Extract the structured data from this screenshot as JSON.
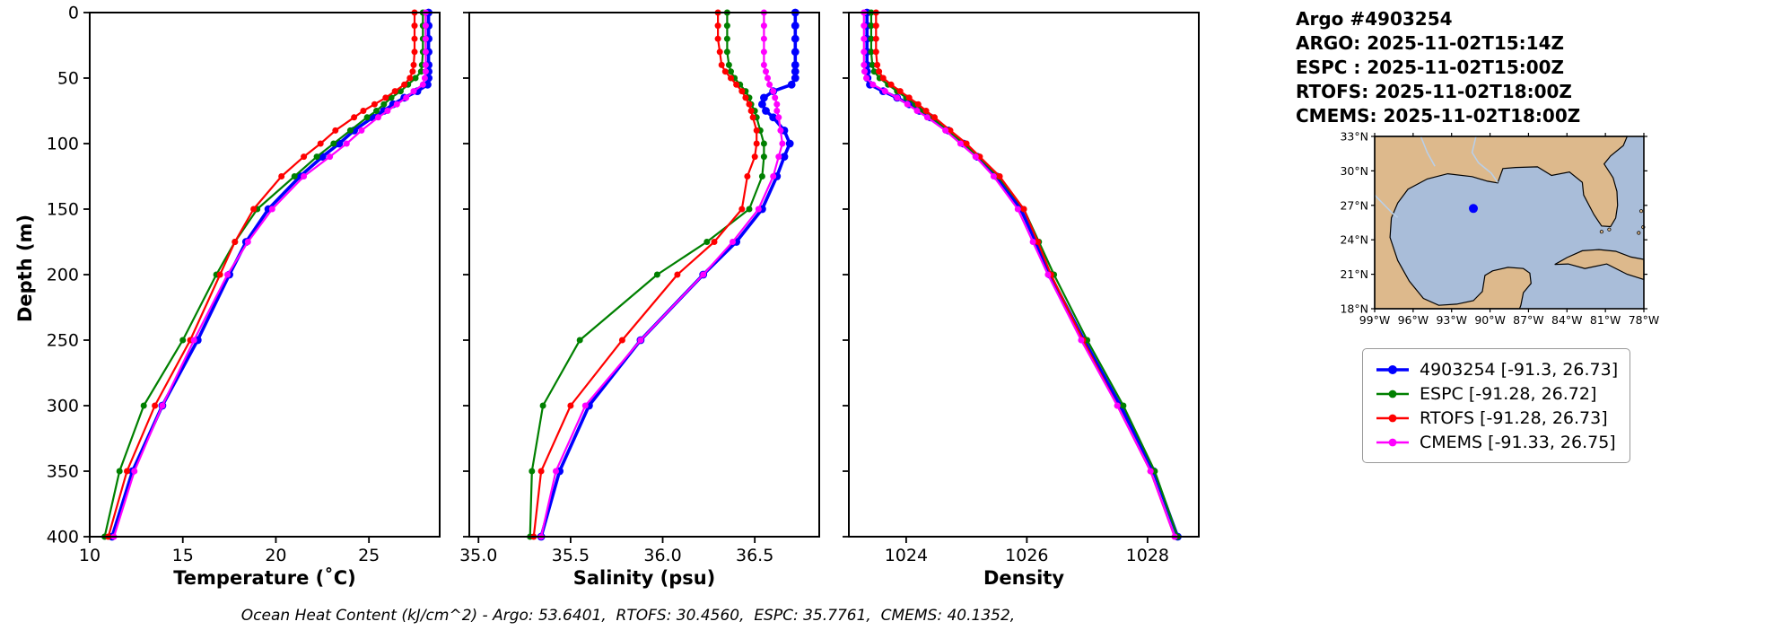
{
  "header": {
    "title": "Argo #4903254",
    "lines": [
      "ARGO: 2025-11-02T15:14Z",
      "ESPC : 2025-11-02T15:00Z",
      "RTOFS: 2025-11-02T18:00Z",
      "CMEMS: 2025-11-02T18:00Z"
    ]
  },
  "footer": {
    "text": "Ocean Heat Content (kJ/cm^2) - Argo: 53.6401,  RTOFS: 30.4560,  ESPC: 35.7761,  CMEMS: 40.1352,"
  },
  "legend": {
    "items": [
      {
        "label": "4903254 [-91.3, 26.73]",
        "color": "#0000ff"
      },
      {
        "label": "ESPC [-91.28, 26.72]",
        "color": "#008000"
      },
      {
        "label": "RTOFS [-91.28, 26.73]",
        "color": "#ff0000"
      },
      {
        "label": "CMEMS [-91.33, 26.75]",
        "color": "#ff00ff"
      }
    ]
  },
  "map": {
    "extent": {
      "lon_min": -99,
      "lon_max": -78,
      "lat_min": 18,
      "lat_max": 33
    },
    "lat_tick_values": [
      33,
      30,
      27,
      24,
      21,
      18
    ],
    "lat_tick_labels": [
      "33°N",
      "30°N",
      "27°N",
      "24°N",
      "21°N",
      "18°N"
    ],
    "lon_tick_values": [
      -99,
      -96,
      -93,
      -90,
      -87,
      -84,
      -81,
      -78
    ],
    "lon_tick_labels": [
      "99°W",
      "96°W",
      "93°W",
      "90°W",
      "87°W",
      "84°W",
      "81°W",
      "78°W"
    ],
    "land_color": "#ddb98c",
    "water_color": "#a9bdd9",
    "river_color": "#b9cfe8",
    "marker": {
      "lon": -91.3,
      "lat": 26.73,
      "color": "#0000ff"
    }
  },
  "chart_data": {
    "type": "line",
    "orientation": "vertical-profile",
    "ylabel": "Depth (m)",
    "ylim": [
      0,
      400
    ],
    "yticks": [
      0,
      50,
      100,
      150,
      200,
      250,
      300,
      350,
      400
    ],
    "grid": false,
    "legend_position": "outside-right",
    "highlight_series": "4903254",
    "series_colors": {
      "4903254": "#0000ff",
      "ESPC": "#008000",
      "RTOFS": "#ff0000",
      "CMEMS": "#ff00ff"
    },
    "depths": [
      0,
      10,
      20,
      30,
      40,
      45,
      50,
      55,
      60,
      65,
      70,
      75,
      80,
      90,
      100,
      110,
      125,
      150,
      175,
      200,
      250,
      300,
      350,
      400
    ],
    "panels": [
      {
        "id": "temperature",
        "xlabel": "Temperature (˚C)",
        "xlim": [
          10,
          28.8
        ],
        "xticks": [
          10,
          15,
          20,
          25
        ],
        "xtick_labels": [
          "10",
          "15",
          "20",
          "25"
        ],
        "series": [
          {
            "name": "4903254",
            "values": [
              28.2,
              28.2,
              28.2,
              28.2,
              28.2,
              28.2,
              28.2,
              28.15,
              27.6,
              26.9,
              26.3,
              25.8,
              25.2,
              24.2,
              23.4,
              22.5,
              21.3,
              19.6,
              18.4,
              17.5,
              15.8,
              13.9,
              12.3,
              11.2
            ]
          },
          {
            "name": "ESPC",
            "values": [
              27.9,
              27.9,
              27.9,
              27.9,
              27.85,
              27.8,
              27.5,
              27.1,
              26.7,
              26.2,
              25.8,
              25.4,
              24.9,
              24.0,
              23.1,
              22.2,
              21.0,
              19.0,
              17.8,
              16.8,
              15.0,
              12.9,
              11.6,
              10.8
            ]
          },
          {
            "name": "RTOFS",
            "values": [
              27.45,
              27.45,
              27.45,
              27.45,
              27.4,
              27.35,
              27.2,
              26.9,
              26.4,
              25.9,
              25.3,
              24.7,
              24.2,
              23.2,
              22.4,
              21.5,
              20.3,
              18.8,
              17.8,
              17.0,
              15.4,
              13.5,
              12.0,
              11.0
            ]
          },
          {
            "name": "CMEMS",
            "values": [
              28.05,
              28.05,
              28.05,
              28.05,
              28.05,
              28.05,
              28.0,
              27.9,
              27.4,
              27.0,
              26.5,
              26.0,
              25.5,
              24.6,
              23.8,
              22.9,
              21.5,
              19.8,
              18.5,
              17.4,
              15.6,
              13.9,
              12.4,
              11.3
            ]
          }
        ]
      },
      {
        "id": "salinity",
        "xlabel": "Salinity (psu)",
        "xlim": [
          34.95,
          36.85
        ],
        "xticks": [
          35.0,
          35.5,
          36.0,
          36.5
        ],
        "xtick_labels": [
          "35.0",
          "35.5",
          "36.0",
          "36.5"
        ],
        "series": [
          {
            "name": "4903254",
            "values": [
              36.72,
              36.72,
              36.72,
              36.72,
              36.72,
              36.72,
              36.72,
              36.7,
              36.6,
              36.55,
              36.54,
              36.56,
              36.6,
              36.66,
              36.69,
              36.66,
              36.62,
              36.54,
              36.4,
              36.22,
              35.88,
              35.6,
              35.44,
              35.34
            ]
          },
          {
            "name": "ESPC",
            "values": [
              36.35,
              36.35,
              36.35,
              36.35,
              36.36,
              36.37,
              36.39,
              36.42,
              36.45,
              36.47,
              36.48,
              36.5,
              36.51,
              36.53,
              36.55,
              36.55,
              36.54,
              36.47,
              36.24,
              35.97,
              35.55,
              35.35,
              35.29,
              35.28
            ]
          },
          {
            "name": "RTOFS",
            "values": [
              36.3,
              36.3,
              36.3,
              36.31,
              36.32,
              36.34,
              36.37,
              36.4,
              36.43,
              36.45,
              36.47,
              36.48,
              36.49,
              36.51,
              36.51,
              36.5,
              36.46,
              36.43,
              36.28,
              36.08,
              35.78,
              35.5,
              35.34,
              35.3
            ]
          },
          {
            "name": "CMEMS",
            "values": [
              36.55,
              36.55,
              36.55,
              36.55,
              36.55,
              36.56,
              36.57,
              36.58,
              36.6,
              36.61,
              36.62,
              36.62,
              36.63,
              36.64,
              36.65,
              36.63,
              36.6,
              36.52,
              36.38,
              36.22,
              35.88,
              35.58,
              35.42,
              35.34
            ]
          }
        ]
      },
      {
        "id": "density",
        "xlabel": "Density",
        "xlim": [
          1023.05,
          1028.85
        ],
        "xticks": [
          1024,
          1026,
          1028
        ],
        "xtick_labels": [
          "1024",
          "1026",
          "1028"
        ],
        "series": [
          {
            "name": "4903254",
            "values": [
              1023.35,
              1023.35,
              1023.35,
              1023.35,
              1023.35,
              1023.35,
              1023.36,
              1023.4,
              1023.62,
              1023.85,
              1024.05,
              1024.22,
              1024.4,
              1024.7,
              1024.95,
              1025.18,
              1025.5,
              1025.9,
              1026.15,
              1026.38,
              1026.95,
              1027.55,
              1028.1,
              1028.5
            ]
          },
          {
            "name": "ESPC",
            "values": [
              1023.42,
              1023.42,
              1023.42,
              1023.42,
              1023.44,
              1023.47,
              1023.56,
              1023.7,
              1023.85,
              1024.0,
              1024.15,
              1024.28,
              1024.42,
              1024.7,
              1024.95,
              1025.2,
              1025.52,
              1025.95,
              1026.2,
              1026.45,
              1027.0,
              1027.6,
              1028.12,
              1028.5
            ]
          },
          {
            "name": "RTOFS",
            "values": [
              1023.5,
              1023.5,
              1023.5,
              1023.5,
              1023.52,
              1023.55,
              1023.62,
              1023.75,
              1023.9,
              1024.05,
              1024.2,
              1024.33,
              1024.47,
              1024.73,
              1025.0,
              1025.22,
              1025.55,
              1025.95,
              1026.18,
              1026.4,
              1026.93,
              1027.5,
              1028.05,
              1028.45
            ]
          },
          {
            "name": "CMEMS",
            "values": [
              1023.3,
              1023.3,
              1023.3,
              1023.3,
              1023.3,
              1023.31,
              1023.34,
              1023.45,
              1023.65,
              1023.85,
              1024.02,
              1024.18,
              1024.35,
              1024.65,
              1024.9,
              1025.15,
              1025.45,
              1025.85,
              1026.1,
              1026.35,
              1026.9,
              1027.5,
              1028.05,
              1028.45
            ]
          }
        ]
      }
    ]
  }
}
